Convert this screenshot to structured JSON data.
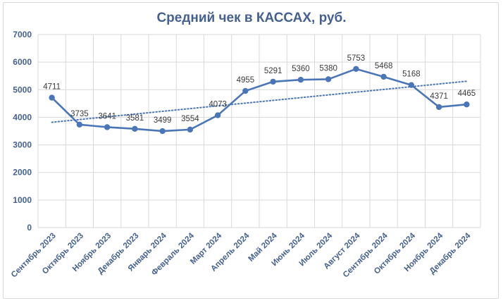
{
  "chart_data": {
    "type": "line",
    "title": "Средний чек в КАССАХ, руб.",
    "xlabel": "",
    "ylabel": "",
    "ylim": [
      0,
      7000
    ],
    "yticks": [
      0,
      1000,
      2000,
      3000,
      4000,
      5000,
      6000,
      7000
    ],
    "grid": true,
    "legend": "none",
    "categories": [
      "Сентябрь 2023",
      "Октябрь 2023",
      "Ноябрь 2023",
      "Декабрь 2023",
      "Январь 2024",
      "Февраль 2024",
      "Март 2024",
      "Апрель 2024",
      "Май 2024",
      "Июнь 2024",
      "Июль 2024",
      "Август 2024",
      "Сентябрь 2024",
      "Октябрь 2024",
      "Ноябрь 2024",
      "Декабрь 2024"
    ],
    "series": [
      {
        "values": [
          4711,
          3735,
          3641,
          3581,
          3499,
          3554,
          4073,
          4955,
          5291,
          5360,
          5380,
          5753,
          5468,
          5168,
          4371,
          4465
        ],
        "color": "#4a76b8"
      }
    ],
    "trendline": {
      "type": "linear",
      "style": "dotted",
      "color": "#4a76b8"
    }
  }
}
